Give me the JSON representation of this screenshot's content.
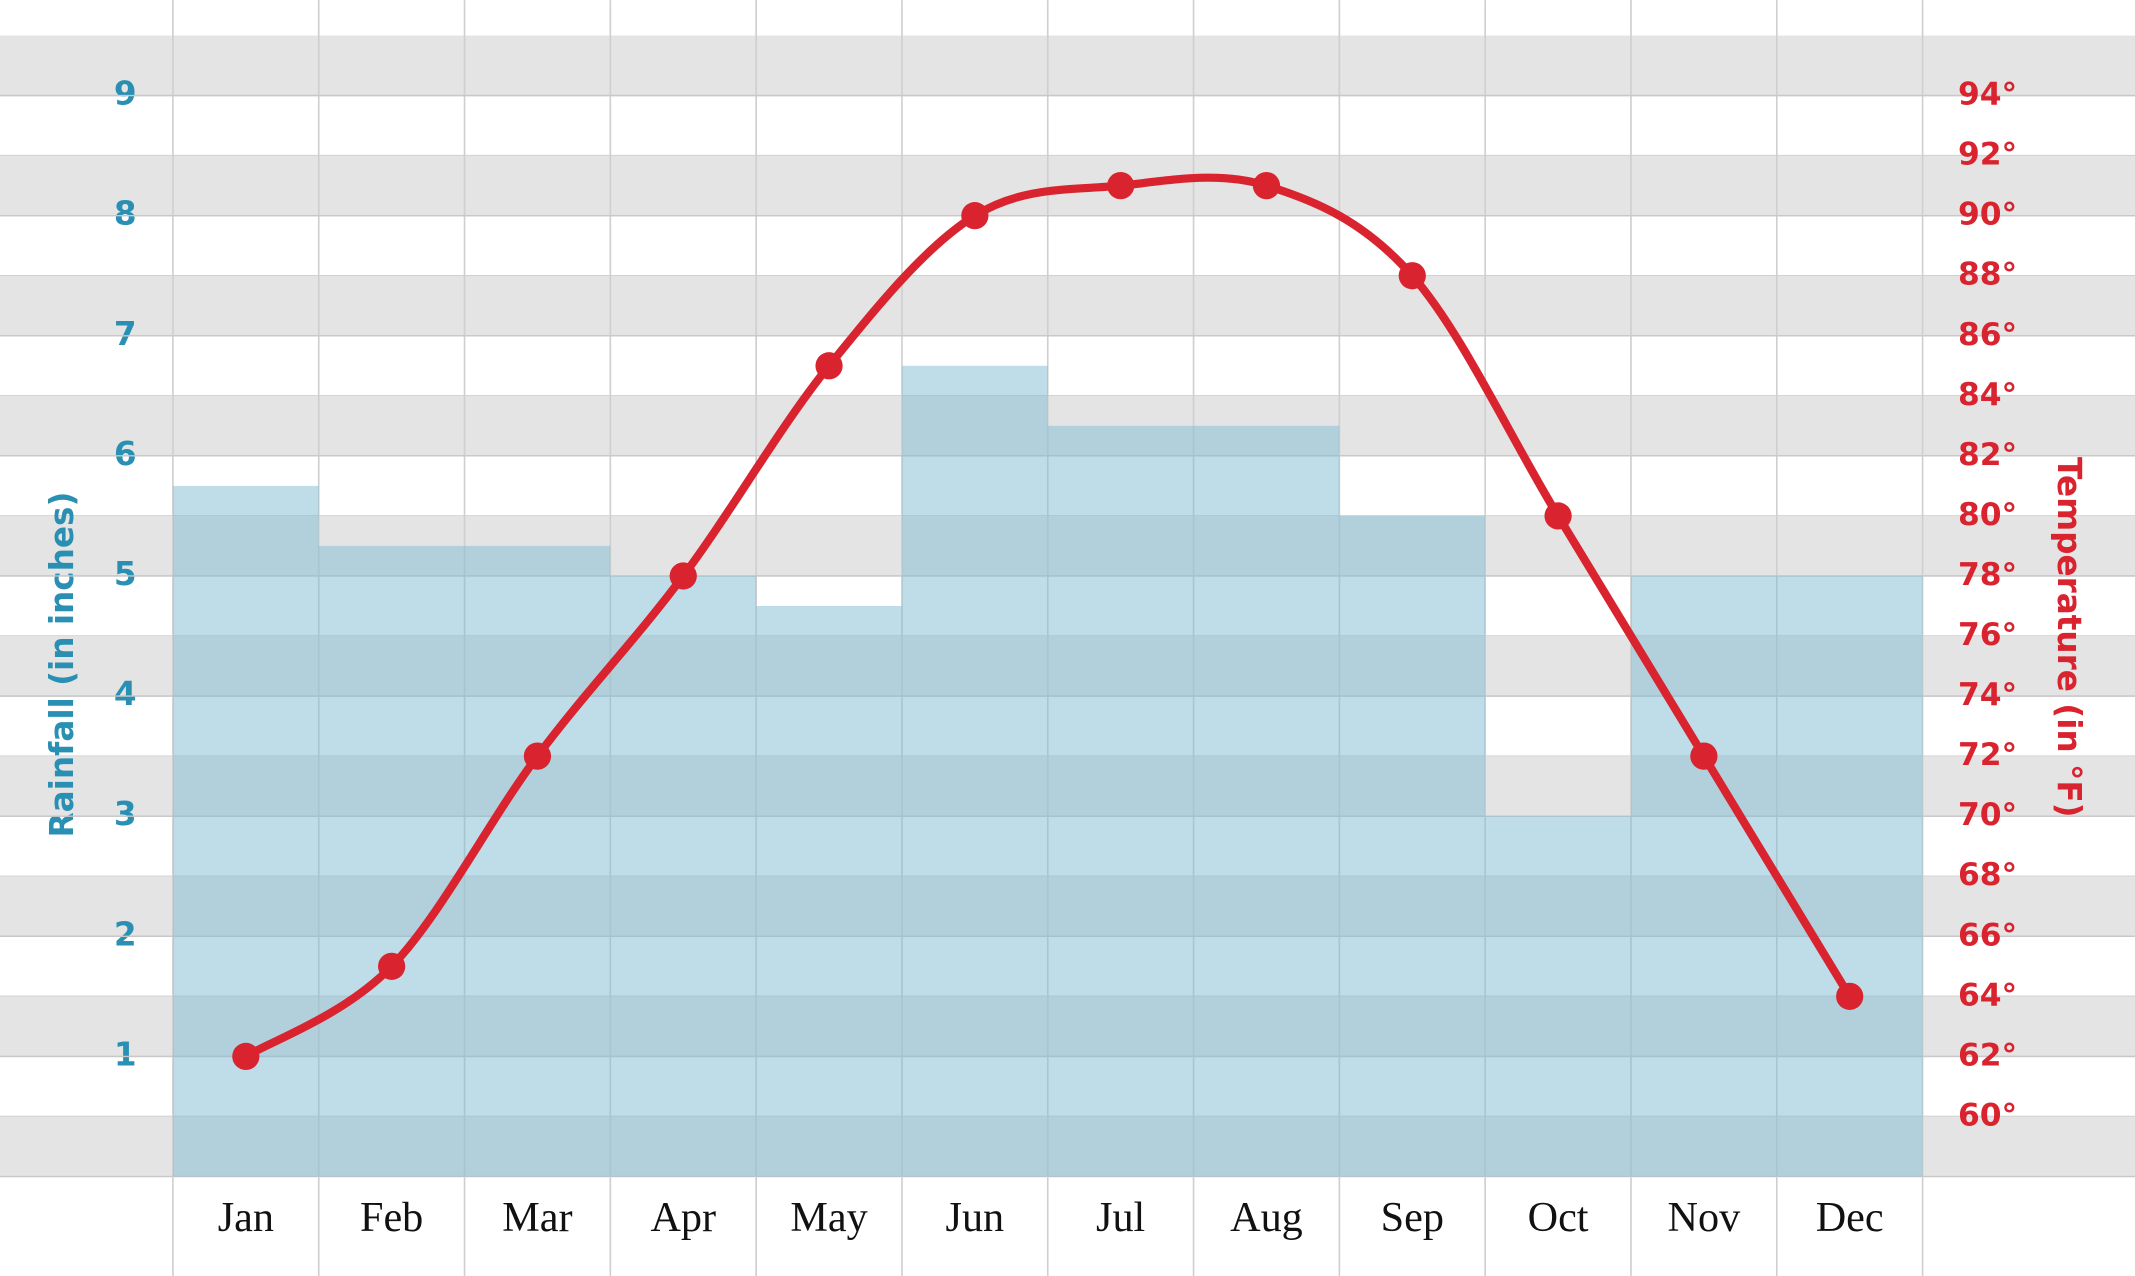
{
  "chart_data": {
    "type": "combo",
    "ylabel": "Rainfall (in inches)",
    "y2label": "Temperature (in °F)",
    "categories": [
      "Jan",
      "Feb",
      "Mar",
      "Apr",
      "May",
      "Jun",
      "Jul",
      "Aug",
      "Sep",
      "Oct",
      "Nov",
      "Dec"
    ],
    "series": [
      {
        "type": "bar",
        "color": "#7fbcd2",
        "values": [
          5.75,
          5.25,
          5.25,
          5.0,
          4.75,
          6.75,
          6.25,
          6.25,
          5.5,
          3.0,
          5.0,
          5.0
        ]
      },
      {
        "type": "line",
        "axis": "y2",
        "color": "#d9232e",
        "values": [
          62,
          65,
          72,
          78,
          85,
          90,
          91,
          91,
          88,
          80,
          72,
          64
        ]
      }
    ],
    "ylim": [
      0,
      9.5
    ],
    "yticks": [
      1,
      2,
      3,
      4,
      5,
      6,
      7,
      8,
      9
    ],
    "y2lim": [
      58,
      96
    ],
    "y2ticks": [
      {
        "value": 60,
        "label": "60°"
      },
      {
        "value": 62,
        "label": "62°"
      },
      {
        "value": 64,
        "label": "64°"
      },
      {
        "value": 66,
        "label": "66°"
      },
      {
        "value": 68,
        "label": "68°"
      },
      {
        "value": 70,
        "label": "70°"
      },
      {
        "value": 72,
        "label": "72°"
      },
      {
        "value": 74,
        "label": "74°"
      },
      {
        "value": 76,
        "label": "76°"
      },
      {
        "value": 78,
        "label": "78°"
      },
      {
        "value": 80,
        "label": "80°"
      },
      {
        "value": 82,
        "label": "82°"
      },
      {
        "value": 84,
        "label": "84°"
      },
      {
        "value": 86,
        "label": "86°"
      },
      {
        "value": 88,
        "label": "88°"
      },
      {
        "value": 90,
        "label": "90°"
      },
      {
        "value": 92,
        "label": "92°"
      },
      {
        "value": 94,
        "label": "94°"
      }
    ],
    "grid": true
  }
}
